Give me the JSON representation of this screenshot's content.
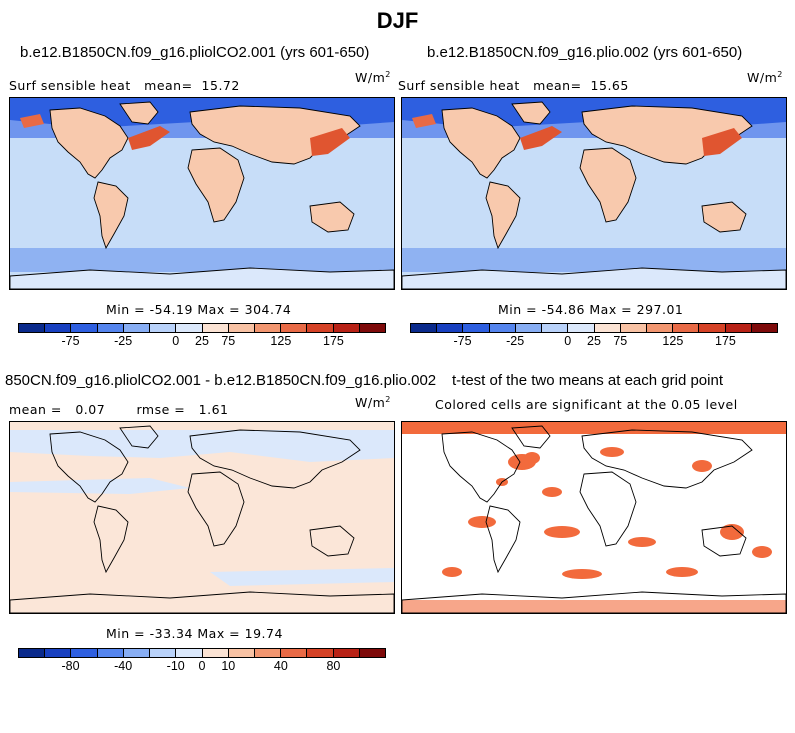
{
  "title": "DJF",
  "panels": {
    "p1": {
      "title": "b.e12.B1850CN.f09_g16.pliolCO2.001 (yrs 601-650)",
      "field": "Surf sensible heat",
      "mean_label": "mean=",
      "mean": "15.72",
      "units": "W/m",
      "units_exp": "2",
      "minmax": "Min = -54.19 Max = 304.74"
    },
    "p2": {
      "title": "b.e12.B1850CN.f09_g16.plio.002 (yrs 601-650)",
      "field": "Surf sensible heat",
      "mean_label": "mean=",
      "mean": "15.65",
      "units": "W/m",
      "units_exp": "2",
      "minmax": "Min = -54.86 Max = 297.01"
    },
    "p3": {
      "title": "850CN.f09_g16.pliolCO2.001 - b.e12.B1850CN.f09_g16.plio.002",
      "mean_label": "mean =",
      "mean": "0.07",
      "rmse_label": "rmse =",
      "rmse": "1.61",
      "units": "W/m",
      "units_exp": "2",
      "minmax": "Min = -33.34 Max = 19.74"
    },
    "p4": {
      "title": "t-test of the two means at each grid point",
      "subtitle": "Colored cells are significant at the 0.05 level"
    }
  },
  "colorbar_main": {
    "colors": [
      "#0a2a8c",
      "#1840c0",
      "#2e5fe0",
      "#5585ee",
      "#88aef4",
      "#b9d2fa",
      "#dbe8fb",
      "#fbe3d4",
      "#f8c2a4",
      "#f29670",
      "#e86a46",
      "#d54226",
      "#b82216",
      "#7e0a0a"
    ],
    "labels": [
      "-75",
      "-25",
      "0",
      "25",
      "75",
      "125",
      "175"
    ]
  },
  "colorbar_diff": {
    "colors": [
      "#0a2a8c",
      "#1840c0",
      "#2e5fe0",
      "#5585ee",
      "#88aef4",
      "#b9d2fa",
      "#dbe8fb",
      "#fbe3d4",
      "#f8c2a4",
      "#f29670",
      "#e86a46",
      "#d54226",
      "#b82216",
      "#7e0a0a"
    ],
    "labels": [
      "-80",
      "-40",
      "-10",
      "0",
      "10",
      "40",
      "80"
    ]
  },
  "colors": {
    "ocean_main": "#c7ddf8",
    "land_warm": "#f8c9ad",
    "strong_neg": "#2e5fe0",
    "strong_pos": "#e05530",
    "diff_bg": "#fbe6d8",
    "diff_neg": "#dbe8fb",
    "signif": "#f26a3c"
  }
}
